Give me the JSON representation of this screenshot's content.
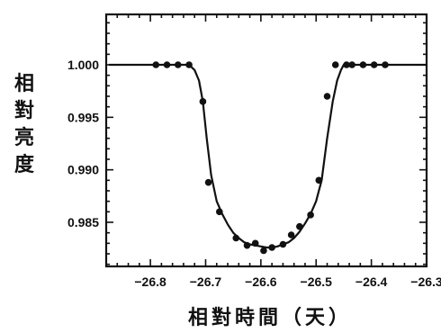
{
  "chart_data": {
    "type": "line",
    "title": "",
    "xlabel": "相對時間（天）",
    "ylabel": "相對亮度",
    "xlim": [
      -26.88,
      -26.3
    ],
    "ylim": [
      0.9808,
      1.0048
    ],
    "xticks": [
      {
        "value": -26.8,
        "label": "−26.8"
      },
      {
        "value": -26.7,
        "label": "−26.7"
      },
      {
        "value": -26.6,
        "label": "−26.6"
      },
      {
        "value": -26.5,
        "label": "−26.5"
      },
      {
        "value": -26.4,
        "label": "−26.4"
      },
      {
        "value": -26.3,
        "label": "−26.3"
      }
    ],
    "yticks": [
      {
        "value": 1.0,
        "label": "1.000"
      },
      {
        "value": 0.995,
        "label": "0.995"
      },
      {
        "value": 0.99,
        "label": "0.990"
      },
      {
        "value": 0.985,
        "label": "0.985"
      }
    ],
    "series": [
      {
        "style": "points",
        "x": [
          -26.79,
          -26.77,
          -26.75,
          -26.73,
          -26.705,
          -26.695,
          -26.675,
          -26.645,
          -26.625,
          -26.61,
          -26.595,
          -26.58,
          -26.56,
          -26.545,
          -26.53,
          -26.51,
          -26.495,
          -26.48,
          -26.465,
          -26.445,
          -26.435,
          -26.415,
          -26.395,
          -26.375
        ],
        "y": [
          1.0,
          1.0,
          1.0,
          1.0,
          0.9965,
          0.9888,
          0.986,
          0.9835,
          0.9828,
          0.983,
          0.9823,
          0.9826,
          0.9829,
          0.9838,
          0.9846,
          0.9857,
          0.989,
          0.997,
          1.0,
          1.0,
          1.0,
          1.0,
          1.0,
          1.0
        ]
      },
      {
        "style": "line",
        "x": [
          -26.875,
          -26.73,
          -26.72,
          -26.712,
          -26.705,
          -26.698,
          -26.69,
          -26.68,
          -26.67,
          -26.66,
          -26.65,
          -26.64,
          -26.63,
          -26.62,
          -26.61,
          -26.6,
          -26.59,
          -26.58,
          -26.57,
          -26.56,
          -26.55,
          -26.54,
          -26.53,
          -26.52,
          -26.51,
          -26.5,
          -26.49,
          -26.48,
          -26.47,
          -26.462,
          -26.455,
          -26.45,
          -26.44,
          -26.3
        ],
        "y": [
          1.0,
          1.0,
          0.9995,
          0.9985,
          0.9965,
          0.993,
          0.9895,
          0.987,
          0.9858,
          0.9848,
          0.984,
          0.9835,
          0.9831,
          0.9829,
          0.9828,
          0.9827,
          0.9826,
          0.9826,
          0.9827,
          0.9829,
          0.9831,
          0.9835,
          0.9841,
          0.9849,
          0.9858,
          0.987,
          0.989,
          0.993,
          0.9965,
          0.9985,
          0.9995,
          1.0,
          1.0,
          1.0
        ]
      }
    ],
    "grid": false,
    "legend": "none"
  }
}
